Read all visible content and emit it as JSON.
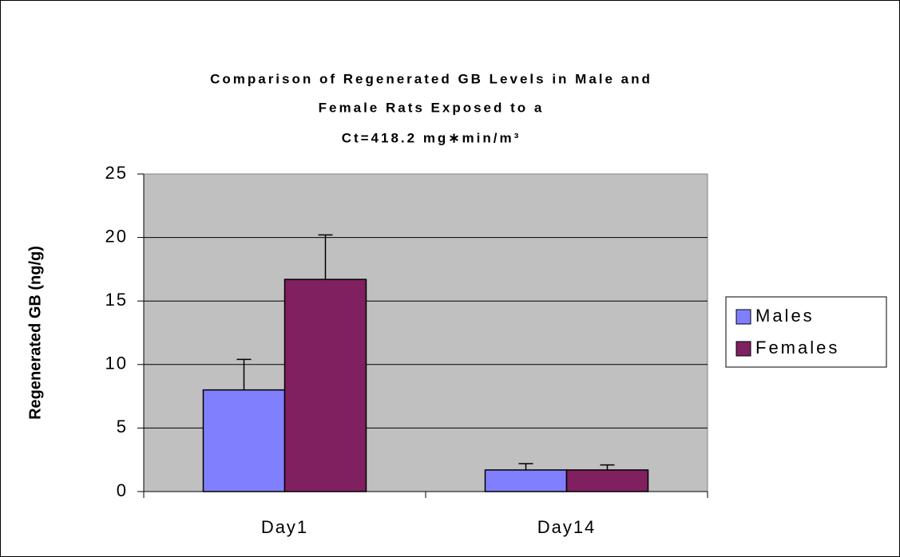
{
  "chart_data": {
    "type": "bar",
    "title": [
      "Comparison of Regenerated GB Levels in Male and",
      "Female Rats Exposed to a",
      "Ct=418.2 mg∗min/m³"
    ],
    "y_label": "Regenerated GB (ng/g)",
    "categories": [
      "Day1",
      "Day14"
    ],
    "series": [
      {
        "name": "Males",
        "color": "#8080ff",
        "values": [
          8.0,
          1.7
        ],
        "errors": [
          2.4,
          0.5
        ]
      },
      {
        "name": "Females",
        "color": "#802060",
        "values": [
          16.7,
          1.7
        ],
        "errors": [
          3.5,
          0.4
        ]
      }
    ],
    "ylim": [
      0,
      25
    ],
    "yticks": [
      0,
      5,
      10,
      15,
      20,
      25
    ],
    "grid": true,
    "legend": "right"
  }
}
